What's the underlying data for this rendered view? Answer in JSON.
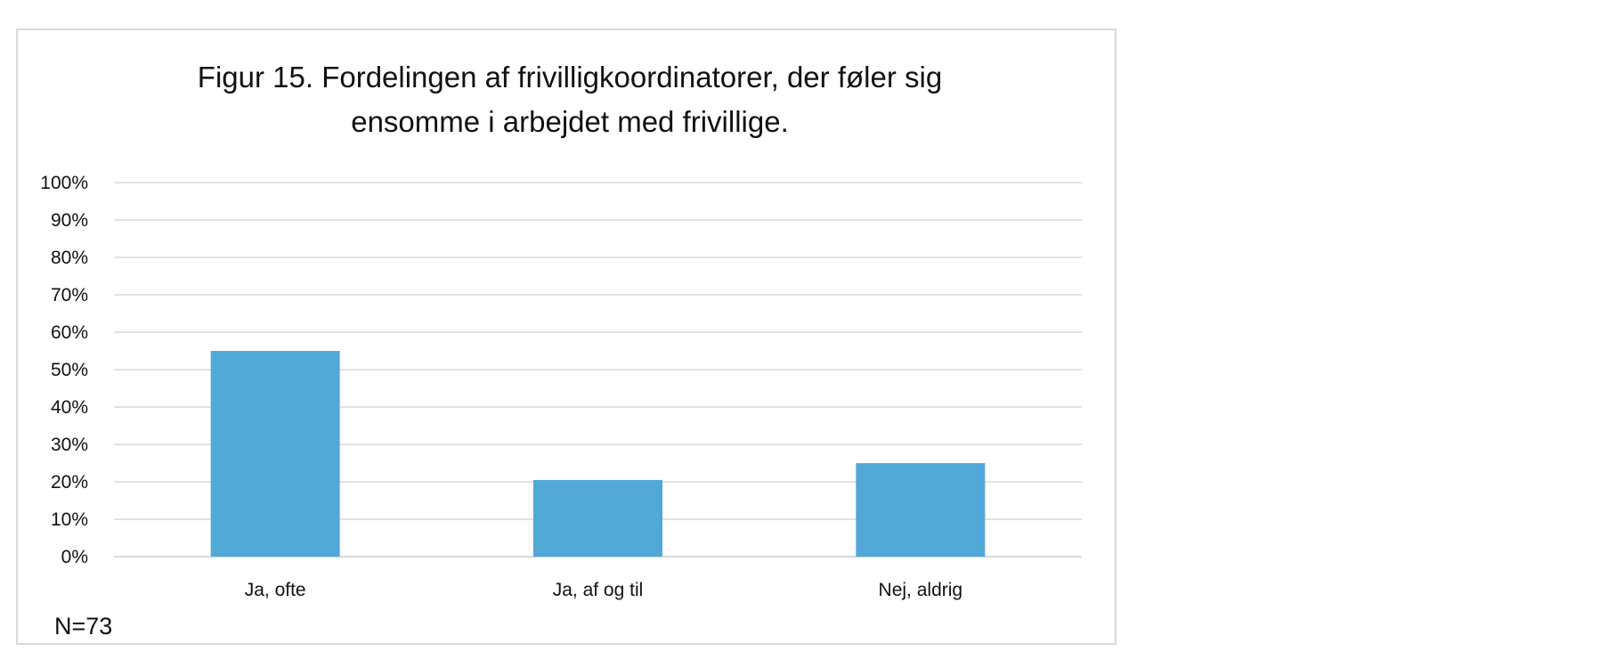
{
  "chart_data": {
    "type": "bar",
    "title_lines": [
      "Figur 15. Fordelingen af frivilligkoordinatorer, der føler sig",
      "ensomme i arbejdet med frivillige."
    ],
    "categories": [
      "Ja, ofte",
      "Ja, af og til",
      "Nej, aldrig"
    ],
    "values": [
      55,
      20.5,
      25
    ],
    "ylim": [
      0,
      100
    ],
    "y_ticks": [
      "0%",
      "10%",
      "20%",
      "30%",
      "40%",
      "50%",
      "60%",
      "70%",
      "80%",
      "90%",
      "100%"
    ],
    "xlabel": "",
    "ylabel": "",
    "grid": true,
    "legend": "none",
    "bar_color": "#52a8d6",
    "grid_color": "#d9d9d9",
    "note": "N=73"
  }
}
